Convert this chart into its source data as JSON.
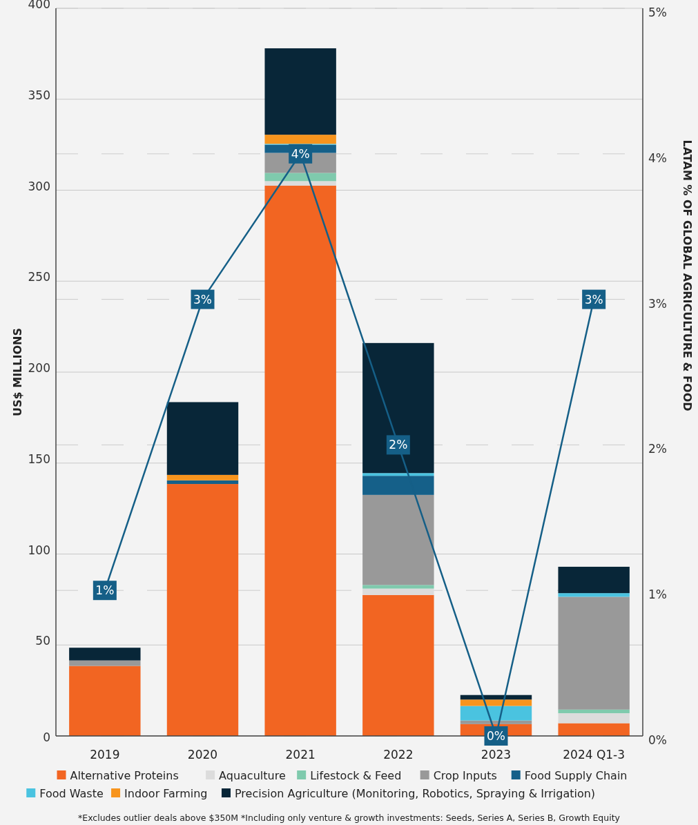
{
  "chart_data": {
    "type": "bar",
    "stacked": true,
    "ylabel": "US$ MILLIONS",
    "y2label": "LATAM % OF GLOBAL AGRICULTURE & FOOD",
    "categories": [
      "2019",
      "2020",
      "2021",
      "2022",
      "2023",
      "2024 Q1-3"
    ],
    "series": [
      {
        "name": "Alternative Proteins",
        "color": "#f26522",
        "values": [
          38.5,
          138.5,
          302.5,
          77.5,
          6.5,
          7
        ]
      },
      {
        "name": "Aquaculture",
        "color": "#dcdcdc",
        "values": [
          0,
          0,
          2.5,
          3.5,
          0,
          5.5
        ]
      },
      {
        "name": "Lifestock & Feed",
        "color": "#7fcaad",
        "values": [
          0,
          0,
          4.5,
          2,
          0,
          2
        ]
      },
      {
        "name": "Crop Inputs",
        "color": "#999999",
        "values": [
          3,
          0,
          11,
          49.5,
          2,
          62
        ]
      },
      {
        "name": "Food Supply Chain",
        "color": "#156089",
        "values": [
          0,
          2,
          4.5,
          10.5,
          0,
          0
        ]
      },
      {
        "name": "Food Waste",
        "color": "#4ac3e0",
        "values": [
          0,
          0,
          0.5,
          1.5,
          8,
          2
        ]
      },
      {
        "name": "Indoor Farming",
        "color": "#f7941d",
        "values": [
          0,
          3,
          5,
          0,
          3.5,
          0
        ]
      },
      {
        "name": "Precision Agriculture (Monitoring, Robotics, Spraying & Irrigation)",
        "color": "#082638",
        "values": [
          7,
          40,
          47.5,
          71.5,
          2.5,
          14.5
        ]
      },
      {
        "type": "line",
        "axis": "y2",
        "marker": "square",
        "color": "#155f87",
        "values": [
          1,
          3,
          4,
          2,
          0,
          3
        ],
        "value_labels": [
          "1%",
          "3%",
          "4%",
          "2%",
          "0%",
          "3%"
        ]
      }
    ],
    "ylim": [
      0,
      400
    ],
    "yticks": [
      0,
      50,
      100,
      150,
      200,
      250,
      300,
      350,
      400
    ],
    "y2lim": [
      0,
      5
    ],
    "y2ticks": [
      {
        "value": 0,
        "label": "0%"
      },
      {
        "value": 1,
        "label": "1%"
      },
      {
        "value": 2,
        "label": "2%"
      },
      {
        "value": 3,
        "label": "3%"
      },
      {
        "value": 4,
        "label": "4%"
      },
      {
        "value": 5,
        "label": "5%"
      }
    ],
    "grid": true,
    "legend": "bottom",
    "annotations": [
      "*Excludes outlier deals above $350M   *Including only venture & growth investments: Seeds, Series A, Series B, Growth Equity"
    ]
  }
}
